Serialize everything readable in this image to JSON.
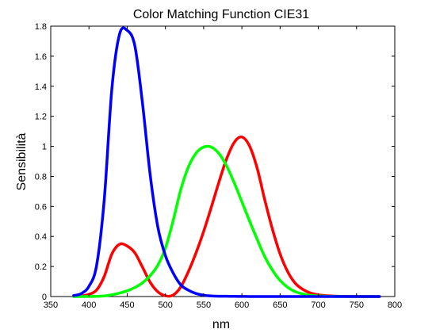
{
  "chart_data": {
    "type": "line",
    "title": "Color Matching Function CIE31",
    "xlabel": "nm",
    "ylabel": "Sensibilità",
    "xlim": [
      350,
      800
    ],
    "ylim": [
      0,
      1.8
    ],
    "xticks": [
      "350",
      "400",
      "450",
      "500",
      "550",
      "600",
      "650",
      "700",
      "750",
      "800"
    ],
    "yticks": [
      "0",
      "0.2",
      "0.4",
      "0.6",
      "0.8",
      "1",
      "1.2",
      "1.4",
      "1.6",
      "1.8"
    ],
    "grid": false,
    "legend": "none",
    "x": [
      380,
      390,
      400,
      410,
      420,
      430,
      440,
      450,
      460,
      470,
      480,
      490,
      500,
      510,
      520,
      530,
      540,
      550,
      560,
      570,
      580,
      590,
      600,
      610,
      620,
      630,
      640,
      650,
      660,
      670,
      680,
      690,
      700,
      710,
      720,
      730,
      740,
      750,
      760,
      770,
      780
    ],
    "series": [
      {
        "color": "#ff0000",
        "values": [
          0.0014,
          0.0042,
          0.0143,
          0.0435,
          0.1344,
          0.2839,
          0.3483,
          0.3362,
          0.2908,
          0.1954,
          0.0956,
          0.032,
          0.0049,
          0.0093,
          0.0633,
          0.1655,
          0.2904,
          0.4334,
          0.5945,
          0.7621,
          0.9163,
          1.0263,
          1.0622,
          1.0026,
          0.8544,
          0.6424,
          0.4479,
          0.2835,
          0.1649,
          0.0874,
          0.0468,
          0.0227,
          0.0114,
          0.0058,
          0.0029,
          0.0014,
          0.0007,
          0.0003,
          0.0002,
          0.0001,
          0.0
        ]
      },
      {
        "color": "#00ff00",
        "values": [
          0.0,
          0.0001,
          0.0004,
          0.0012,
          0.004,
          0.0116,
          0.023,
          0.038,
          0.06,
          0.091,
          0.139,
          0.208,
          0.323,
          0.503,
          0.71,
          0.862,
          0.954,
          0.995,
          0.995,
          0.952,
          0.87,
          0.757,
          0.631,
          0.503,
          0.381,
          0.265,
          0.175,
          0.107,
          0.061,
          0.032,
          0.017,
          0.0082,
          0.0041,
          0.0021,
          0.001,
          0.0005,
          0.0002,
          0.0001,
          0.0001,
          0.0,
          0.0
        ]
      },
      {
        "color": "#0000ff",
        "values": [
          0.0065,
          0.0201,
          0.0679,
          0.2074,
          0.6456,
          1.3856,
          1.7471,
          1.7721,
          1.6692,
          1.2876,
          0.813,
          0.4652,
          0.272,
          0.1582,
          0.0782,
          0.0422,
          0.0203,
          0.0087,
          0.0039,
          0.0021,
          0.0017,
          0.0011,
          0.0008,
          0.0003,
          0.0002,
          0.0,
          0.0,
          0.0,
          0.0,
          0.0,
          0.0,
          0.0,
          0.0,
          0.0,
          0.0,
          0.0,
          0.0,
          0.0,
          0.0,
          0.0,
          0.0
        ]
      }
    ]
  }
}
